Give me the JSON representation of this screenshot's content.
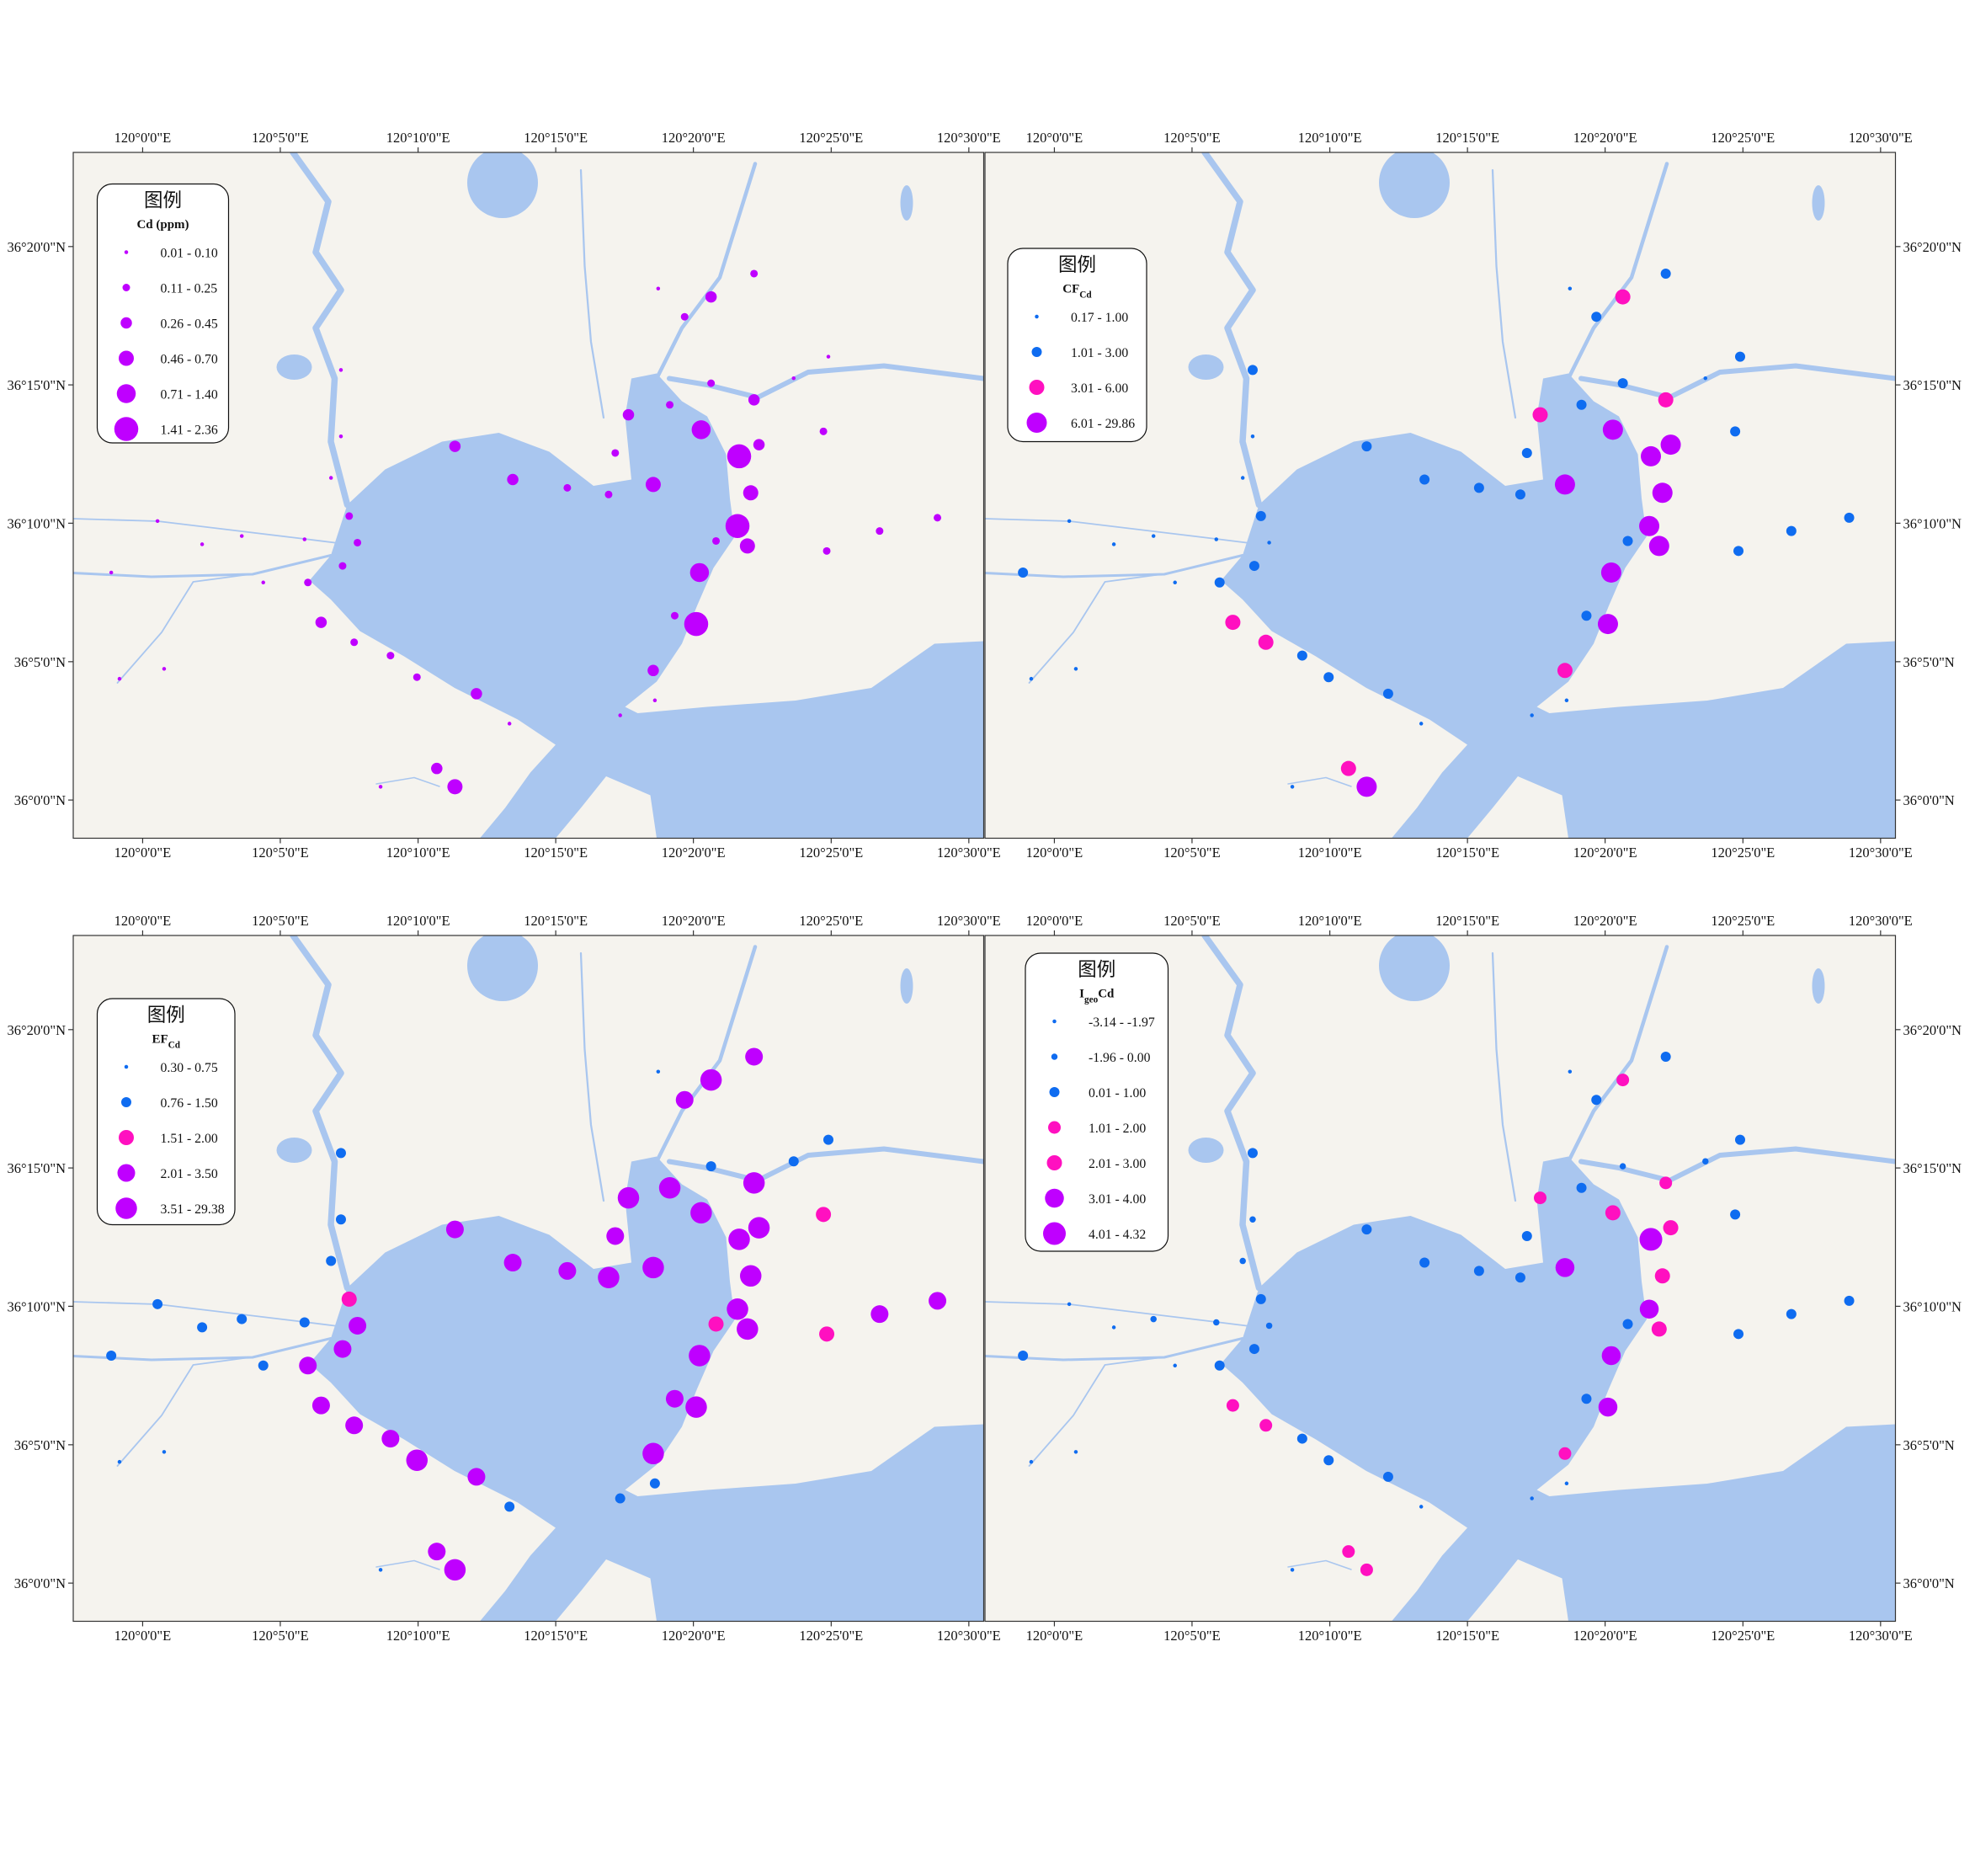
{
  "map": {
    "xlim": [
      119.958,
      120.509
    ],
    "ylim": [
      35.977,
      36.39
    ],
    "xticks": [
      {
        "value": 120,
        "label": "120°0'0\"E"
      },
      {
        "value": 120.0833,
        "label": "120°5'0\"E"
      },
      {
        "value": 120.1667,
        "label": "120°10'0\"E"
      },
      {
        "value": 120.25,
        "label": "120°15'0\"E"
      },
      {
        "value": 120.3333,
        "label": "120°20'0\"E"
      },
      {
        "value": 120.4167,
        "label": "120°25'0\"E"
      },
      {
        "value": 120.5,
        "label": "120°30'0\"E"
      }
    ],
    "yticks": [
      {
        "value": 36,
        "label": "36°0'0\"N"
      },
      {
        "value": 36.0833,
        "label": "36°5'0\"N"
      },
      {
        "value": 36.1667,
        "label": "36°10'0\"N"
      },
      {
        "value": 36.25,
        "label": "36°15'0\"N"
      },
      {
        "value": 36.3333,
        "label": "36°20'0\"N"
      }
    ]
  },
  "panels": [
    {
      "legend_heading": "图例",
      "legend_title": [
        {
          "text": "Cd (ppm)"
        }
      ],
      "lat_labels": "left",
      "classes": [
        {
          "label": "0.01 - 0.10",
          "color": "#bf00ff",
          "lon": [
            119.981,
            120.009,
            119.986,
            120.013,
            120.036,
            120.06,
            120.073,
            120.098,
            120.114,
            120.12,
            120.12,
            120.144,
            120.222,
            120.289,
            120.31,
            120.312,
            120.394,
            120.415
          ],
          "lat": [
            36.137,
            36.168,
            36.073,
            36.079,
            36.154,
            36.159,
            36.131,
            36.157,
            36.194,
            36.219,
            36.259,
            36.008,
            36.046,
            36.051,
            36.06,
            36.308,
            36.254,
            36.267
          ]
        },
        {
          "label": "0.11 - 0.25",
          "color": "#bf00ff",
          "lon": [
            120.1,
            120.121,
            120.13,
            120.125,
            120.128,
            120.15,
            120.166,
            120.257,
            120.282,
            120.286,
            120.319,
            120.328,
            120.37,
            120.347,
            120.414,
            120.446,
            120.481,
            120.412,
            120.322,
            120.344
          ],
          "lat": [
            36.131,
            36.141,
            36.155,
            36.171,
            36.095,
            36.087,
            36.074,
            36.188,
            36.184,
            36.209,
            36.238,
            36.291,
            36.317,
            36.156,
            36.15,
            36.162,
            36.17,
            36.222,
            36.111,
            36.251
          ]
        },
        {
          "label": "0.26 - 0.45",
          "color": "#bf00ff",
          "lon": [
            120.108,
            120.189,
            120.224,
            120.202,
            120.178,
            120.294,
            120.344,
            120.37,
            120.373,
            120.309
          ],
          "lat": [
            36.107,
            36.213,
            36.193,
            36.064,
            36.019,
            36.232,
            36.303,
            36.241,
            36.214,
            36.078
          ]
        },
        {
          "label": "0.46 - 0.70",
          "color": "#bf00ff",
          "lon": [
            120.309,
            120.368,
            120.366,
            120.189
          ],
          "lat": [
            36.19,
            36.185,
            36.153,
            36.008
          ]
        },
        {
          "label": "0.71 - 1.40",
          "color": "#bf00ff",
          "lon": [
            120.338,
            120.337
          ],
          "lat": [
            36.223,
            36.137
          ]
        },
        {
          "label": "1.41 - 2.36",
          "color": "#bf00ff",
          "lon": [
            120.361,
            120.36,
            120.335
          ],
          "lat": [
            36.207,
            36.165,
            36.106
          ]
        }
      ]
    },
    {
      "legend_heading": "图例",
      "legend_title": [
        {
          "text": "CF"
        },
        {
          "text": "Cd",
          "sub": true
        }
      ],
      "lat_labels": "right",
      "classes": [
        {
          "label": "0.17 - 1.00",
          "color": "#0f6cf0",
          "lon": [
            120.009,
            119.986,
            120.013,
            120.036,
            120.06,
            120.073,
            120.098,
            120.13,
            120.114,
            120.12,
            120.222,
            120.144,
            120.289,
            120.31,
            120.312,
            120.394
          ],
          "lat": [
            36.168,
            36.073,
            36.079,
            36.154,
            36.159,
            36.131,
            36.157,
            36.155,
            36.194,
            36.219,
            36.046,
            36.008,
            36.051,
            36.06,
            36.308,
            36.254
          ]
        },
        {
          "label": "1.01 - 3.00",
          "color": "#0f6cf0",
          "lon": [
            119.981,
            120.121,
            120.125,
            120.12,
            120.15,
            120.166,
            120.202,
            120.189,
            120.224,
            120.257,
            120.282,
            120.286,
            120.319,
            120.328,
            120.37,
            120.344,
            120.415,
            120.412,
            120.446,
            120.481,
            120.414,
            120.322,
            120.347,
            120.1
          ],
          "lat": [
            36.137,
            36.141,
            36.171,
            36.259,
            36.087,
            36.074,
            36.064,
            36.213,
            36.193,
            36.188,
            36.184,
            36.209,
            36.238,
            36.291,
            36.317,
            36.251,
            36.267,
            36.222,
            36.162,
            36.17,
            36.15,
            36.111,
            36.156,
            36.131
          ]
        },
        {
          "label": "3.01 - 6.00",
          "color": "#ff10c0",
          "lon": [
            120.108,
            120.128,
            120.178,
            120.344,
            120.37,
            120.294,
            120.309
          ],
          "lat": [
            36.107,
            36.095,
            36.019,
            36.303,
            36.241,
            36.232,
            36.078
          ]
        },
        {
          "label": "6.01 - 29.86",
          "color": "#bf00ff",
          "lon": [
            120.189,
            120.338,
            120.361,
            120.373,
            120.309,
            120.368,
            120.36,
            120.366,
            120.337,
            120.335
          ],
          "lat": [
            36.008,
            36.223,
            36.207,
            36.214,
            36.19,
            36.185,
            36.165,
            36.153,
            36.137,
            36.106
          ]
        }
      ]
    },
    {
      "legend_heading": "图例",
      "legend_title": [
        {
          "text": "EF"
        },
        {
          "text": "Cd",
          "sub": true
        }
      ],
      "lat_labels": "left",
      "classes": [
        {
          "label": "0.30 - 0.75",
          "color": "#0f6cf0",
          "lon": [
            119.986,
            120.013,
            120.144,
            120.312
          ],
          "lat": [
            36.073,
            36.079,
            36.008,
            36.308
          ]
        },
        {
          "label": "0.76 - 1.50",
          "color": "#0f6cf0",
          "lon": [
            119.981,
            120.009,
            120.036,
            120.06,
            120.073,
            120.098,
            120.114,
            120.12,
            120.12,
            120.222,
            120.289,
            120.31,
            120.344,
            120.394,
            120.415
          ],
          "lat": [
            36.137,
            36.168,
            36.154,
            36.159,
            36.131,
            36.157,
            36.194,
            36.219,
            36.259,
            36.046,
            36.051,
            36.06,
            36.251,
            36.254,
            36.267
          ]
        },
        {
          "label": "1.51 - 2.00",
          "color": "#ff10c0",
          "lon": [
            120.125,
            120.412,
            120.414,
            120.347
          ],
          "lat": [
            36.171,
            36.222,
            36.15,
            36.156
          ]
        },
        {
          "label": "2.01 - 3.50",
          "color": "#bf00ff",
          "lon": [
            120.1,
            120.121,
            120.13,
            120.108,
            120.128,
            120.15,
            120.202,
            120.178,
            120.189,
            120.224,
            120.257,
            120.286,
            120.328,
            120.37,
            120.322,
            120.446,
            120.481
          ],
          "lat": [
            36.131,
            36.141,
            36.155,
            36.107,
            36.095,
            36.087,
            36.064,
            36.019,
            36.213,
            36.193,
            36.188,
            36.209,
            36.291,
            36.317,
            36.111,
            36.162,
            36.17
          ]
        },
        {
          "label": "3.51 - 29.38",
          "color": "#bf00ff",
          "lon": [
            120.166,
            120.189,
            120.282,
            120.294,
            120.309,
            120.319,
            120.344,
            120.37,
            120.338,
            120.361,
            120.373,
            120.368,
            120.36,
            120.366,
            120.337,
            120.335,
            120.309
          ],
          "lat": [
            36.074,
            36.008,
            36.184,
            36.232,
            36.19,
            36.238,
            36.303,
            36.241,
            36.223,
            36.207,
            36.214,
            36.185,
            36.165,
            36.153,
            36.137,
            36.106,
            36.078
          ]
        }
      ]
    },
    {
      "legend_heading": "图例",
      "legend_title": [
        {
          "text": "I"
        },
        {
          "text": "geo",
          "sub": true
        },
        {
          "text": "Cd"
        }
      ],
      "lat_labels": "right",
      "classes": [
        {
          "label": "-3.14 - -1.97",
          "color": "#0f6cf0",
          "lon": [
            120.009,
            119.986,
            120.013,
            120.036,
            120.073,
            120.144,
            120.222,
            120.31,
            120.289,
            120.312
          ],
          "lat": [
            36.168,
            36.073,
            36.079,
            36.154,
            36.131,
            36.008,
            36.046,
            36.06,
            36.051,
            36.308
          ]
        },
        {
          "label": "-1.96 - 0.00",
          "color": "#0f6cf0",
          "lon": [
            120.06,
            120.098,
            120.13,
            120.114,
            120.12,
            120.394,
            120.344
          ],
          "lat": [
            36.159,
            36.157,
            36.155,
            36.194,
            36.219,
            36.254,
            36.251
          ]
        },
        {
          "label": "0.01 - 1.00",
          "color": "#0f6cf0",
          "lon": [
            119.981,
            120.1,
            120.121,
            120.125,
            120.12,
            120.15,
            120.166,
            120.202,
            120.189,
            120.224,
            120.257,
            120.282,
            120.286,
            120.319,
            120.328,
            120.37,
            120.415,
            120.347,
            120.322,
            120.412,
            120.446,
            120.481,
            120.414
          ],
          "lat": [
            36.137,
            36.131,
            36.141,
            36.171,
            36.259,
            36.087,
            36.074,
            36.064,
            36.213,
            36.193,
            36.188,
            36.184,
            36.209,
            36.238,
            36.291,
            36.317,
            36.267,
            36.156,
            36.111,
            36.222,
            36.162,
            36.17,
            36.15
          ]
        },
        {
          "label": "1.01 - 2.00",
          "color": "#ff10c0",
          "lon": [
            120.108,
            120.128,
            120.178,
            120.189,
            120.309,
            120.294,
            120.344,
            120.37
          ],
          "lat": [
            36.107,
            36.095,
            36.019,
            36.008,
            36.078,
            36.232,
            36.303,
            36.241
          ]
        },
        {
          "label": "2.01 - 3.00",
          "color": "#ff10c0",
          "lon": [
            120.338,
            120.373,
            120.368,
            120.366
          ],
          "lat": [
            36.223,
            36.214,
            36.185,
            36.153
          ]
        },
        {
          "label": "3.01 - 4.00",
          "color": "#bf00ff",
          "lon": [
            120.309,
            120.36,
            120.337,
            120.335
          ],
          "lat": [
            36.19,
            36.165,
            36.137,
            36.106
          ]
        },
        {
          "label": "4.01 - 4.32",
          "color": "#bf00ff",
          "lon": [
            120.361
          ],
          "lat": [
            36.207
          ]
        }
      ]
    }
  ]
}
